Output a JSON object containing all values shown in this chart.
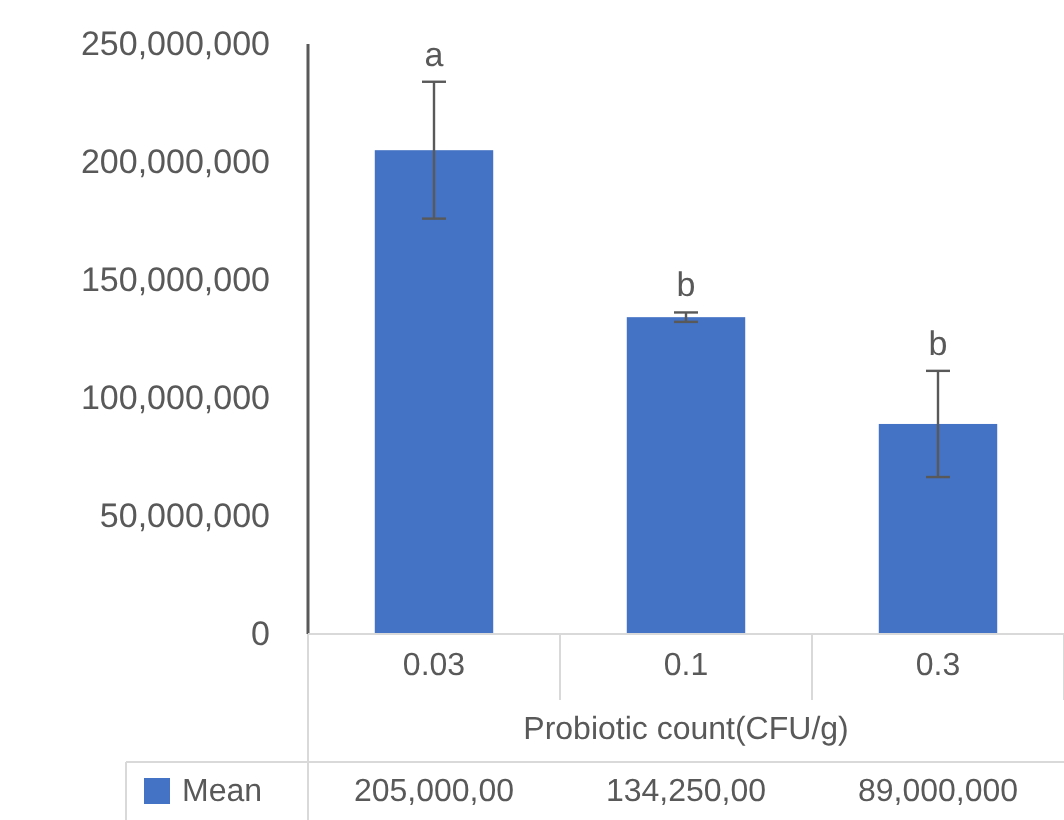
{
  "chart_data": {
    "type": "bar",
    "categories": [
      "0.03",
      "0.1",
      "0.3"
    ],
    "xlabel": "Probiotic count(CFU/g)",
    "series": [
      {
        "name": "Mean",
        "color": "#4472c4",
        "values": [
          205000000,
          134250000,
          89000000
        ],
        "errors": [
          29000000,
          2000000,
          22500000
        ],
        "value_labels": [
          "205,000,00",
          "134,250,00",
          "89,000,000"
        ]
      }
    ],
    "ylim": [
      0,
      250000000
    ],
    "yticks": [
      {
        "value": 0,
        "label": "0"
      },
      {
        "value": 50000000,
        "label": "50,000,000"
      },
      {
        "value": 100000000,
        "label": "100,000,000"
      },
      {
        "value": 150000000,
        "label": "150,000,000"
      },
      {
        "value": 200000000,
        "label": "200,000,000"
      },
      {
        "value": 250000000,
        "label": "250,000,000"
      }
    ],
    "annotations": [
      {
        "text": "a",
        "x": "0.03",
        "y": 234000000
      },
      {
        "text": "b",
        "x": "0.1",
        "y": 136250000
      },
      {
        "text": "b",
        "x": "0.3",
        "y": 111500000
      }
    ],
    "legend": "bottom",
    "grid": false
  }
}
